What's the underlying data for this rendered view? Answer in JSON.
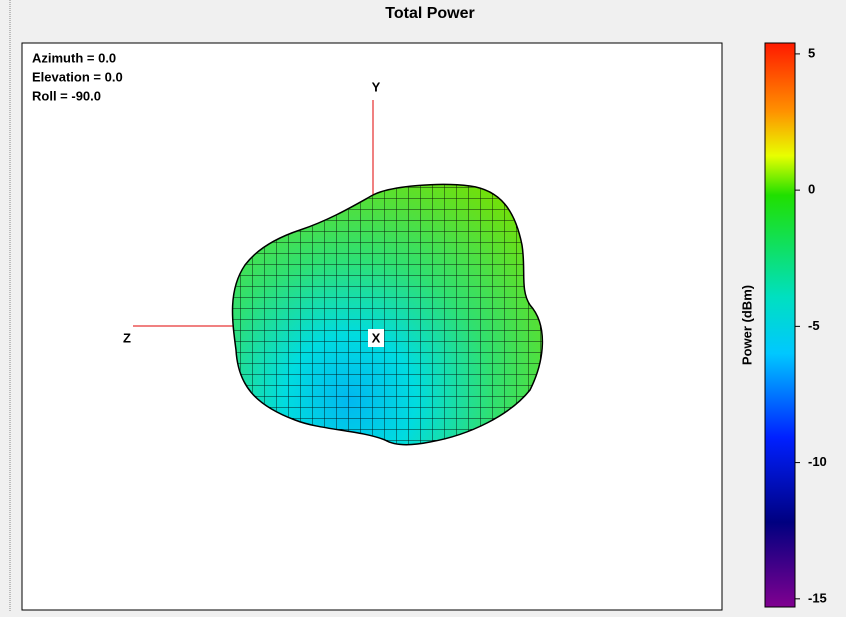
{
  "header": {
    "title": "Total Power"
  },
  "view": {
    "lines": [
      "Azimuth = 0.0",
      "Elevation = 0.0",
      "Roll = -90.0"
    ]
  },
  "axes": {
    "y": "Y",
    "z": "Z",
    "x": "X"
  },
  "colorbar": {
    "label": "Power  (dBm)",
    "range": [
      -15.3,
      5.4
    ],
    "ticks": [
      5,
      0,
      -5,
      -10,
      -15
    ]
  }
}
